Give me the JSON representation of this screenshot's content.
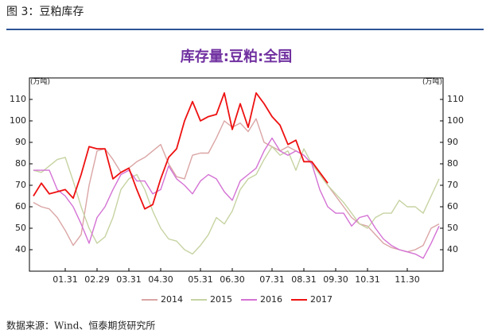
{
  "header": "图 3：豆粕库存",
  "source": "数据来源：Wind、恒泰期货研究所",
  "chart_data": {
    "type": "line",
    "title": "库存量:豆粕:全国",
    "y_unit": "(万吨)",
    "y2_unit": "(万吨)",
    "categories": [
      null,
      null,
      null,
      null,
      "01.31",
      null,
      null,
      null,
      "02.29",
      null,
      null,
      null,
      "03.31",
      null,
      null,
      null,
      "04.30",
      null,
      null,
      null,
      null,
      "05.31",
      null,
      null,
      null,
      "06.30",
      null,
      null,
      null,
      null,
      "07.31",
      null,
      null,
      null,
      "08.31",
      null,
      null,
      null,
      "09.30",
      null,
      null,
      null,
      "10.31",
      null,
      null,
      null,
      null,
      "11.30",
      null,
      null,
      null,
      null
    ],
    "ylim": [
      30,
      120
    ],
    "yticks": [
      40,
      50,
      60,
      70,
      80,
      90,
      100,
      110
    ],
    "y2lim": [
      30,
      120
    ],
    "y2ticks": [
      40,
      50,
      60,
      70,
      80,
      90,
      100,
      110
    ],
    "grid": false,
    "legend": "bottom",
    "series": [
      {
        "name": "2014",
        "color": "#dba5a5",
        "values": [
          62,
          60,
          59,
          55,
          49,
          42,
          47,
          70,
          86,
          87,
          82,
          76,
          78,
          81,
          83,
          86,
          89,
          80,
          74,
          73,
          84,
          85,
          85,
          92,
          100,
          97,
          99,
          95,
          101,
          90,
          88,
          86,
          88,
          86,
          84,
          80,
          75,
          70,
          65,
          60,
          55,
          52,
          51,
          47,
          43,
          41,
          40,
          39,
          40,
          42,
          50,
          52
        ]
      },
      {
        "name": "2015",
        "color": "#c6d3a2",
        "values": [
          77,
          76,
          79,
          82,
          83,
          72,
          60,
          50,
          43,
          46,
          55,
          68,
          73,
          75,
          68,
          58,
          50,
          45,
          44,
          40,
          38,
          42,
          47,
          55,
          52,
          58,
          68,
          73,
          75,
          82,
          88,
          84,
          86,
          77,
          87,
          80,
          75,
          70,
          66,
          62,
          57,
          52,
          50,
          55,
          57,
          57,
          63,
          60,
          60,
          57,
          65,
          73
        ]
      },
      {
        "name": "2016",
        "color": "#d472d4",
        "values": [
          77,
          77,
          77,
          68,
          65,
          60,
          52,
          43,
          55,
          60,
          68,
          75,
          77,
          72,
          72,
          66,
          68,
          79,
          73,
          70,
          66,
          72,
          75,
          73,
          67,
          63,
          72,
          75,
          78,
          86,
          92,
          86,
          84,
          86,
          84,
          80,
          68,
          60,
          57,
          57,
          51,
          55,
          56,
          50,
          45,
          42,
          40,
          39,
          38,
          36,
          43,
          51
        ]
      },
      {
        "name": "2017",
        "color": "#ee1111",
        "values": [
          65,
          71,
          66,
          67,
          68,
          64,
          75,
          88,
          87,
          87,
          73,
          76,
          78,
          68,
          59,
          61,
          73,
          83,
          87,
          100,
          109,
          100,
          102,
          103,
          113,
          96,
          108,
          97,
          113,
          108,
          102,
          98,
          89,
          91,
          81,
          81,
          76,
          71,
          null,
          null,
          null,
          null,
          null,
          null,
          null,
          null,
          null,
          null,
          null,
          null,
          null,
          null
        ]
      }
    ]
  }
}
